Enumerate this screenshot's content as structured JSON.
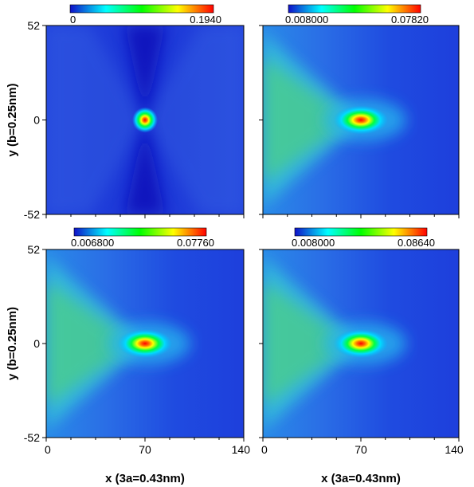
{
  "chart_data": [
    {
      "type": "heatmap",
      "xlabel": "",
      "ylabel": "y (b=0.25nm)",
      "xlim": [
        0,
        140
      ],
      "ylim": [
        -52,
        52
      ],
      "xticks": [],
      "yticks": [
        "52",
        "0",
        "-52"
      ],
      "colorbar": {
        "min": "0",
        "max": "0.1940",
        "colors": [
          "#1010c8",
          "#00ffff",
          "#00ff00",
          "#ffff00",
          "#ff0000"
        ]
      },
      "peak": {
        "x": 70,
        "y": 0
      },
      "pattern": "x-shaped"
    },
    {
      "type": "heatmap",
      "xlabel": "",
      "ylabel": "",
      "xlim": [
        0,
        140
      ],
      "ylim": [
        -52,
        52
      ],
      "xticks": [],
      "yticks": [],
      "colorbar": {
        "min": "0.008000",
        "max": "0.07820",
        "colors": [
          "#1010c8",
          "#00ffff",
          "#00ff00",
          "#ffff00",
          "#ff0000"
        ]
      },
      "peak": {
        "x": 70,
        "y": 0
      },
      "pattern": "fan-left"
    },
    {
      "type": "heatmap",
      "xlabel": "x (3a=0.43nm)",
      "ylabel": "y (b=0.25nm)",
      "xlim": [
        0,
        140
      ],
      "ylim": [
        -52,
        52
      ],
      "xticks": [
        "0",
        "70",
        "140"
      ],
      "yticks": [
        "52",
        "0",
        "-52"
      ],
      "colorbar": {
        "min": "0.006800",
        "max": "0.07760",
        "colors": [
          "#1010c8",
          "#00ffff",
          "#00ff00",
          "#ffff00",
          "#ff0000"
        ]
      },
      "peak": {
        "x": 70,
        "y": 0
      },
      "pattern": "fan-left"
    },
    {
      "type": "heatmap",
      "xlabel": "x (3a=0.43nm)",
      "ylabel": "",
      "xlim": [
        0,
        140
      ],
      "ylim": [
        -52,
        52
      ],
      "xticks": [
        "0",
        "70",
        "140"
      ],
      "yticks": [],
      "colorbar": {
        "min": "0.008000",
        "max": "0.08640",
        "colors": [
          "#1010c8",
          "#00ffff",
          "#00ff00",
          "#ffff00",
          "#ff0000"
        ]
      },
      "peak": {
        "x": 70,
        "y": 0
      },
      "pattern": "fan-left"
    }
  ]
}
